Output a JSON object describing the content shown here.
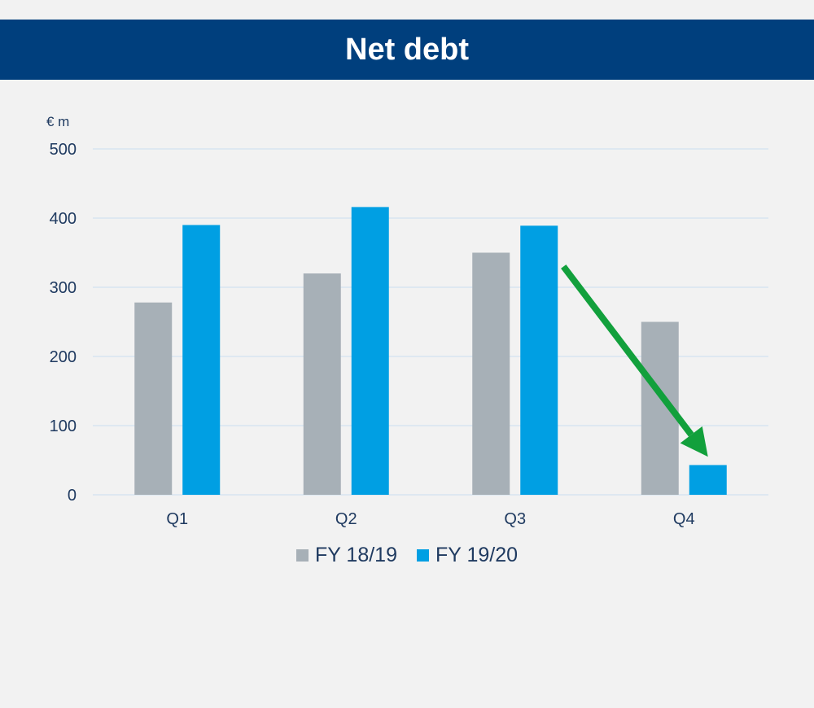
{
  "header": {
    "title": "Net debt"
  },
  "chart_data": {
    "type": "bar",
    "title": "Net debt",
    "unit_label": "€ m",
    "xlabel": "",
    "ylabel": "",
    "categories": [
      "Q1",
      "Q2",
      "Q3",
      "Q4"
    ],
    "series": [
      {
        "name": "FY 18/19",
        "color": "#a7b0b7",
        "values": [
          278,
          320,
          350,
          250
        ]
      },
      {
        "name": "FY 19/20",
        "color": "#009fe3",
        "values": [
          390,
          416,
          389,
          43
        ]
      }
    ],
    "ylim": [
      0,
      500
    ],
    "yticks": [
      "0",
      "100",
      "200",
      "300",
      "400",
      "500"
    ],
    "grid": true,
    "legend_position": "bottom",
    "annotation": {
      "type": "arrow",
      "color": "#12a03c",
      "from": {
        "category": "Q3",
        "value": 330
      },
      "to": {
        "category": "Q4",
        "value": 55
      }
    }
  }
}
